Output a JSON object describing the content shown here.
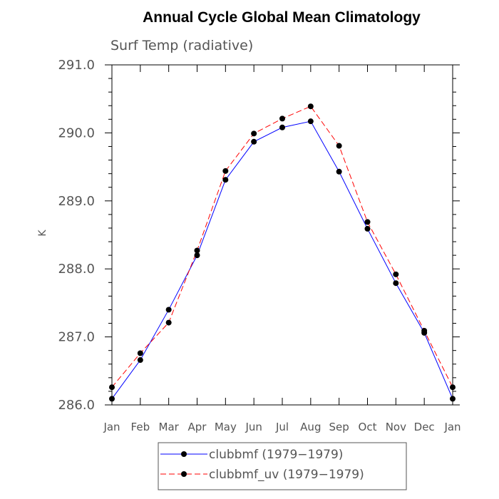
{
  "chart_data": {
    "type": "line",
    "title": "Annual Cycle Global Mean Climatology",
    "subtitle": "Surf Temp (radiative)",
    "xlabel": "",
    "ylabel": "K",
    "categories": [
      "Jan",
      "Feb",
      "Mar",
      "Apr",
      "May",
      "Jun",
      "Jul",
      "Aug",
      "Sep",
      "Oct",
      "Nov",
      "Dec",
      "Jan"
    ],
    "ylim": [
      286.0,
      291.0
    ],
    "yticks": [
      "286.0",
      "287.0",
      "288.0",
      "289.0",
      "290.0",
      "291.0"
    ],
    "grid": false,
    "legend_position": "bottom",
    "series": [
      {
        "name": "clubbmf (1979−1979)",
        "color": "#0000ff",
        "dash": "solid",
        "values": [
          286.09,
          286.66,
          287.4,
          288.2,
          289.31,
          289.87,
          290.08,
          290.17,
          289.43,
          288.59,
          287.79,
          287.06,
          286.09
        ]
      },
      {
        "name": "clubbmf_uv (1979−1979)",
        "color": "#ff0000",
        "dash": "dashed",
        "values": [
          286.26,
          286.76,
          287.21,
          288.27,
          289.44,
          289.99,
          290.21,
          290.39,
          289.81,
          288.69,
          287.92,
          287.09,
          286.26
        ]
      }
    ]
  }
}
